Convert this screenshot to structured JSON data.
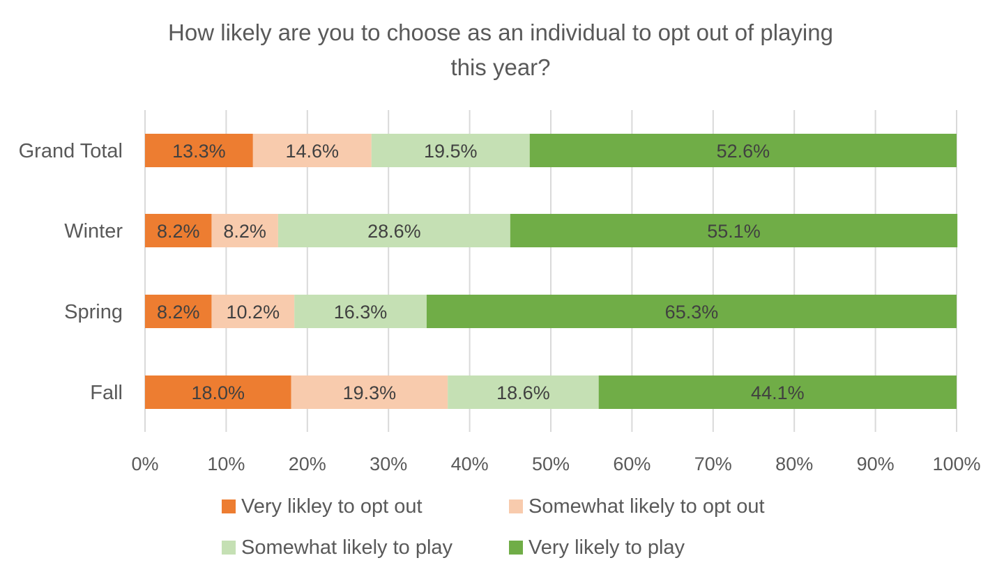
{
  "chart_data": {
    "type": "bar",
    "orientation": "horizontal",
    "stacked": "100%",
    "title_lines": [
      "How likely are you to choose as an individual to opt out of playing",
      "this year?"
    ],
    "categories": [
      "Grand Total",
      "Winter",
      "Spring",
      "Fall"
    ],
    "series": [
      {
        "name": "Very  likley to opt out",
        "color": "#ed7d31",
        "values": [
          13.3,
          8.2,
          8.2,
          18.0
        ],
        "labels": [
          "13.3%",
          "8.2%",
          "8.2%",
          "18.0%"
        ]
      },
      {
        "name": "Somewhat likely to opt out",
        "color": "#f8cbad",
        "values": [
          14.6,
          8.2,
          10.2,
          19.3
        ],
        "labels": [
          "14.6%",
          "8.2%",
          "10.2%",
          "19.3%"
        ]
      },
      {
        "name": "Somewhat likely to play",
        "color": "#c5e0b4",
        "values": [
          19.5,
          28.6,
          16.3,
          18.6
        ],
        "labels": [
          "19.5%",
          "28.6%",
          "16.3%",
          "18.6%"
        ]
      },
      {
        "name": "Very likely to play",
        "color": "#70ad47",
        "values": [
          52.6,
          55.1,
          65.3,
          44.1
        ],
        "labels": [
          "52.6%",
          "55.1%",
          "65.3%",
          "44.1%"
        ]
      }
    ],
    "x_ticks": [
      "0%",
      "10%",
      "20%",
      "30%",
      "40%",
      "50%",
      "60%",
      "70%",
      "80%",
      "90%",
      "100%"
    ],
    "xlim": [
      0,
      100
    ],
    "grid": "vertical",
    "legend_position": "bottom"
  }
}
